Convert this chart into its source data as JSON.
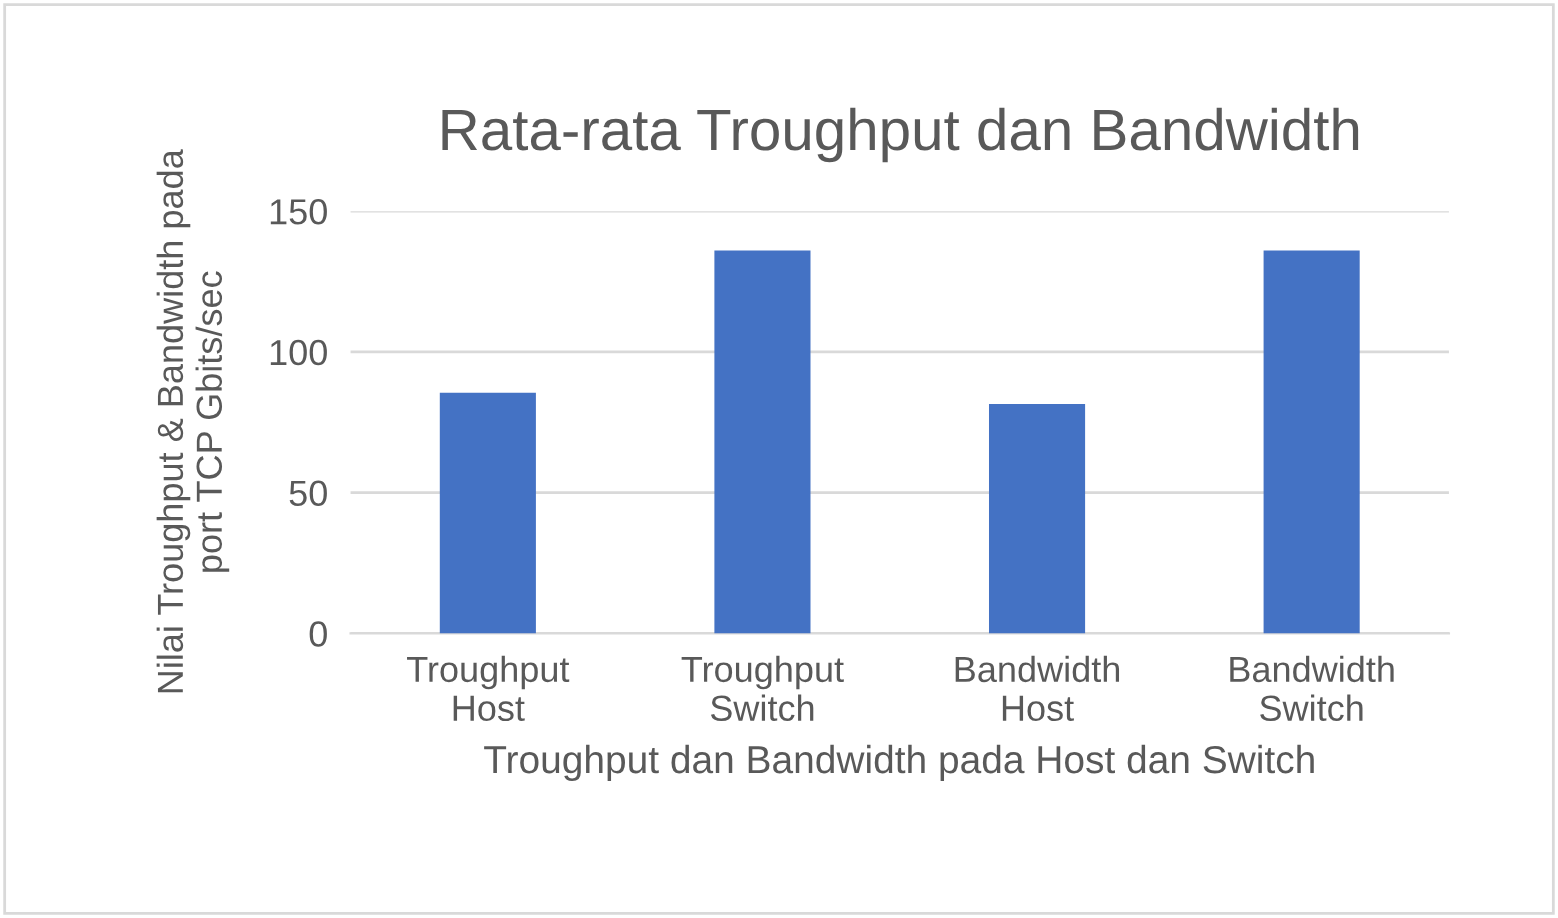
{
  "chart_data": {
    "type": "bar",
    "title": "Rata-rata Troughput dan Bandwidth",
    "xlabel": "Troughput dan Bandwidth pada Host dan Switch",
    "ylabel": "Nilai Troughput & Bandwidth pada\nport TCP Gbits/sec",
    "categories": [
      "Troughput\nHost",
      "Troughput\nSwitch",
      "Bandwidth\nHost",
      "Bandwidth\nSwitch"
    ],
    "values": [
      85.5,
      136,
      81.5,
      136
    ],
    "color": "#4472c4",
    "ylim": [
      0,
      150
    ],
    "yticks": [
      0,
      50,
      100,
      150
    ],
    "grid": "y"
  }
}
